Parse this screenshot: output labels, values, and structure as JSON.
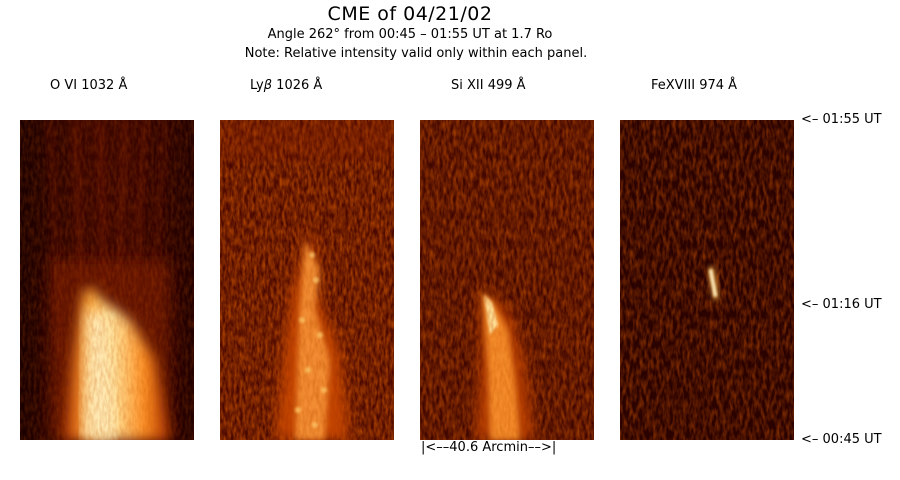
{
  "header": {
    "title": "CME of 04/21/02",
    "subtitle": "Angle 262° from 00:45 – 01:55 UT at 1.7 Ro",
    "note": "Note: Relative intensity valid only within each panel."
  },
  "panels": [
    {
      "prefix": "O VI 1032 Å",
      "symbol": "",
      "suffix": ""
    },
    {
      "prefix": "Ly",
      "symbol": "β",
      "suffix": " 1026 Å"
    },
    {
      "prefix": "Si XII 499 Å",
      "symbol": "",
      "suffix": ""
    },
    {
      "prefix": "FeXVIII 974 Å",
      "symbol": "",
      "suffix": ""
    }
  ],
  "time_labels": {
    "top": "<– 01:55 UT",
    "middle": "<– 01:16 UT",
    "bottom": "<– 00:45 UT"
  },
  "scale_bar": "|<––40.6 Arcmin––>|",
  "colors": {
    "background": "#ffffff",
    "colormap_dark": "#1a0000",
    "colormap_mid": "#a01800",
    "colormap_bright": "#ffe070"
  }
}
